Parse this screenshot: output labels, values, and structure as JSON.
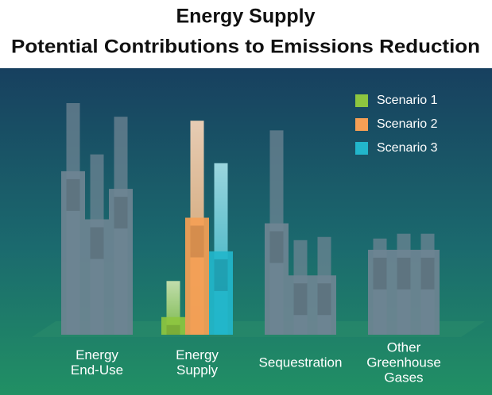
{
  "chart_data": {
    "type": "bar",
    "title": "Energy Supply",
    "subtitle": "Potential Contributions to Emissions Reduction",
    "categories": [
      [
        "Energy",
        "End-Use"
      ],
      [
        "Energy",
        "Supply"
      ],
      [
        "Sequestration"
      ],
      [
        "Other",
        "Greenhouse",
        "Gases"
      ]
    ],
    "series": [
      {
        "name": "Scenario 1",
        "color": "#8dc63f",
        "values": [
          204,
          22,
          139,
          106
        ],
        "high": [
          289,
          67,
          255,
          120
        ]
      },
      {
        "name": "Scenario 2",
        "color": "#f59f55",
        "values": [
          144,
          146,
          74,
          106
        ],
        "high": [
          225,
          267,
          118,
          126
        ]
      },
      {
        "name": "Scenario 3",
        "color": "#22b6cb",
        "values": [
          182,
          104,
          74,
          106
        ],
        "high": [
          272,
          214,
          122,
          126
        ]
      }
    ],
    "base_color": "#6e8493",
    "colored_category": 1,
    "legend": "top-right"
  }
}
